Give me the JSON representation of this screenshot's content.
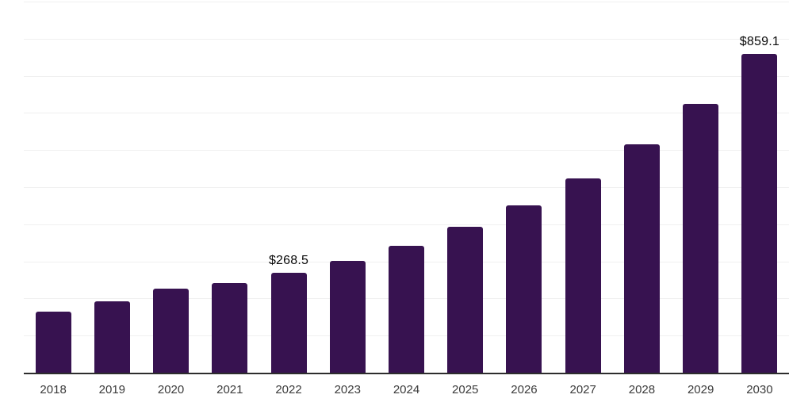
{
  "chart_data": {
    "type": "bar",
    "title": "",
    "xlabel": "",
    "ylabel": "",
    "categories": [
      "2018",
      "2019",
      "2020",
      "2021",
      "2022",
      "2023",
      "2024",
      "2025",
      "2026",
      "2027",
      "2028",
      "2029",
      "2030"
    ],
    "values": [
      164,
      192,
      227,
      241,
      268.5,
      301,
      342,
      393,
      451,
      524,
      615,
      724,
      859.1
    ],
    "value_labels": {
      "2022": "$268.5",
      "2030": "$859.1"
    },
    "ylim": [
      0,
      1000
    ],
    "gridline_step": 100,
    "grid": true,
    "legend": false,
    "colors": {
      "bar": "#371250",
      "gridline": "#f0f0f0",
      "axis_line": "#2d2d2d",
      "tick_label": "#3a3a3a",
      "value_label": "#0a0a0a",
      "background": "#ffffff"
    }
  }
}
